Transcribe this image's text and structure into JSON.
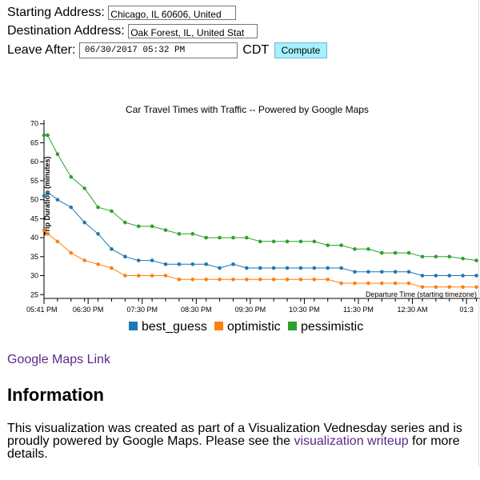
{
  "form": {
    "start_label": "Starting Address:",
    "start_value": "Chicago, IL 60606, United",
    "dest_label": "Destination Address:",
    "dest_value": "Oak Forest, IL, United Stat",
    "leave_label": "Leave After:",
    "leave_value": "06/30/2017 05:32 PM",
    "timezone": "CDT",
    "compute_label": "Compute"
  },
  "chart_data": {
    "type": "line",
    "title": "Car Travel Times with Traffic -- Powered by Google Maps",
    "xlabel": "Departure Time (starting timezone)",
    "ylabel": "Trip Duration (minutes)",
    "ylim": [
      24,
      71
    ],
    "yticks": [
      25,
      30,
      35,
      40,
      45,
      50,
      55,
      60,
      65,
      70
    ],
    "xtick_labels": [
      "05:41 PM",
      "06:30 PM",
      "07:30 PM",
      "08:30 PM",
      "09:30 PM",
      "10:30 PM",
      "11:30 PM",
      "12:30 AM",
      "01:3"
    ],
    "xtick_minutes": [
      0,
      49,
      109,
      169,
      229,
      289,
      349,
      409,
      469
    ],
    "x_minutes": [
      0,
      4,
      15,
      30,
      45,
      60,
      75,
      90,
      105,
      120,
      135,
      150,
      165,
      180,
      195,
      210,
      225,
      240,
      255,
      270,
      285,
      300,
      315,
      330,
      345,
      360,
      375,
      390,
      405,
      420,
      435,
      450,
      465,
      480
    ],
    "series": [
      {
        "name": "best_guess",
        "color": "#1f77b4",
        "values": [
          51,
          52,
          50,
          48,
          44,
          41,
          37,
          35,
          34,
          34,
          33,
          33,
          33,
          33,
          32,
          33,
          32,
          32,
          32,
          32,
          32,
          32,
          32,
          32,
          31,
          31,
          31,
          31,
          31,
          30,
          30,
          30,
          30,
          30
        ]
      },
      {
        "name": "optimistic",
        "color": "#ff7f0e",
        "values": [
          42,
          41,
          39,
          36,
          34,
          33,
          32,
          30,
          30,
          30,
          30,
          29,
          29,
          29,
          29,
          29,
          29,
          29,
          29,
          29,
          29,
          29,
          29,
          28,
          28,
          28,
          28,
          28,
          28,
          27,
          27,
          27,
          27,
          27
        ]
      },
      {
        "name": "pessimistic",
        "color": "#2ca02c",
        "values": [
          67,
          67,
          62,
          56,
          53,
          48,
          47,
          44,
          43,
          43,
          42,
          41,
          41,
          40,
          40,
          40,
          40,
          39,
          39,
          39,
          39,
          39,
          38,
          38,
          37,
          37,
          36,
          36,
          36,
          35,
          35,
          35,
          34.5,
          34
        ]
      }
    ],
    "legend_position": "bottom-center",
    "grid": false
  },
  "links": {
    "google_maps": "Google Maps Link"
  },
  "info": {
    "heading": "Information",
    "text_before": "This visualization was created as part of a Visualization Vednesday series and is proudly powered by Google Maps. Please see the ",
    "writeup_link": "visualization writeup",
    "text_after": " for more details."
  }
}
